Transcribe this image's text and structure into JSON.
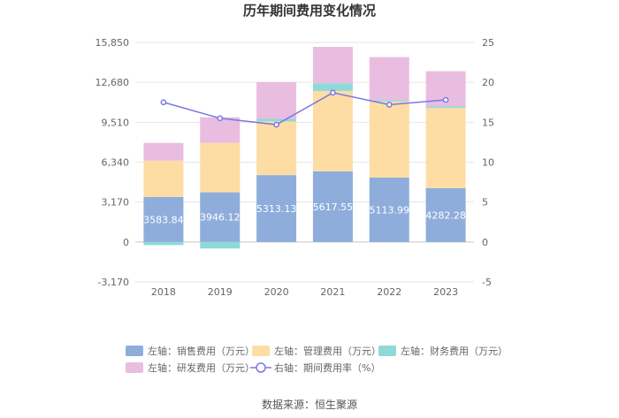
{
  "chart_data": {
    "type": "bar",
    "title": "历年期间费用变化情况",
    "categories": [
      "2018",
      "2019",
      "2020",
      "2021",
      "2022",
      "2023"
    ],
    "left_axis": {
      "ticks": [
        "15,850",
        "12,680",
        "9,510",
        "6,340",
        "3,170",
        "0",
        "-3,170"
      ],
      "ylim": [
        -3170,
        15850
      ]
    },
    "right_axis": {
      "ticks": [
        "25",
        "20",
        "15",
        "10",
        "5",
        "0",
        "-5"
      ],
      "ylim": [
        -5,
        25
      ]
    },
    "series": [
      {
        "name": "左轴：销售费用（万元）",
        "axis": "left",
        "color": "#8eaddb",
        "values": [
          3583.84,
          3946.12,
          5313.13,
          5617.55,
          5113.99,
          4282.28
        ],
        "labels": [
          "3583.84",
          "3946.12",
          "5313.13",
          "5617.55",
          "5113.99",
          "4282.28"
        ]
      },
      {
        "name": "左轴：管理费用（万元）",
        "axis": "left",
        "color": "#fddda4",
        "values": [
          2880,
          3920,
          4260,
          6380,
          6040,
          6360
        ]
      },
      {
        "name": "左轴：财务费用（万元）",
        "axis": "left",
        "color": "#8fd9d9",
        "values": [
          -250,
          -520,
          210,
          610,
          110,
          130
        ]
      },
      {
        "name": "左轴：研发费用（万元）",
        "axis": "left",
        "color": "#e9bde0",
        "values": [
          1400,
          2040,
          2920,
          2890,
          3420,
          2790
        ]
      },
      {
        "name": "右轴：期间费用率（%）",
        "axis": "right",
        "type": "line",
        "color": "#7b77e6",
        "values": [
          17.5,
          15.5,
          14.7,
          18.7,
          17.2,
          17.8
        ]
      }
    ],
    "legend_position": "bottom"
  },
  "source": "数据来源：恒生聚源"
}
